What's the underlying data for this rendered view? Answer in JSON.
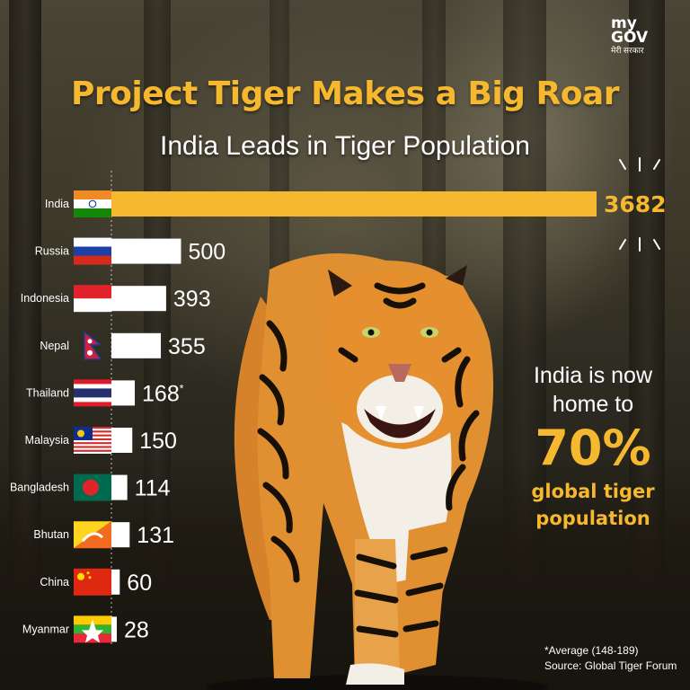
{
  "brand": {
    "my": "my",
    "gov": "GOV",
    "tagline": "मेरी सरकार"
  },
  "colors": {
    "accent": "#f5b82e",
    "bar_default": "#ffffff",
    "bar_highlight": "#f5b82e"
  },
  "chart_data": {
    "type": "bar",
    "orientation": "horizontal",
    "title": "Project Tiger Makes a Big Roar",
    "subtitle": "India Leads in Tiger Population",
    "categories": [
      "India",
      "Russia",
      "Indonesia",
      "Nepal",
      "Thailand",
      "Malaysia",
      "Bangladesh",
      "Bhutan",
      "China",
      "Myanmar"
    ],
    "values": [
      3682,
      500,
      393,
      355,
      168,
      150,
      114,
      131,
      60,
      28
    ],
    "value_labels": [
      "3682",
      "500",
      "393",
      "355",
      "168*",
      "150",
      "114",
      "131",
      "60",
      "28"
    ],
    "highlight": "India",
    "flags": [
      "india-flag-icon",
      "russia-flag-icon",
      "indonesia-flag-icon",
      "nepal-flag-icon",
      "thailand-flag-icon",
      "malaysia-flag-icon",
      "bangladesh-flag-icon",
      "bhutan-flag-icon",
      "china-flag-icon",
      "myanmar-flag-icon"
    ],
    "xlabel": "",
    "ylabel": ""
  },
  "callout": {
    "line1": "India is now",
    "line2": "home to",
    "percent": "70%",
    "line3": "global tiger",
    "line4": "population"
  },
  "footnote": {
    "average": "*Average (148-189)",
    "source": "Source: Global Tiger Forum"
  }
}
